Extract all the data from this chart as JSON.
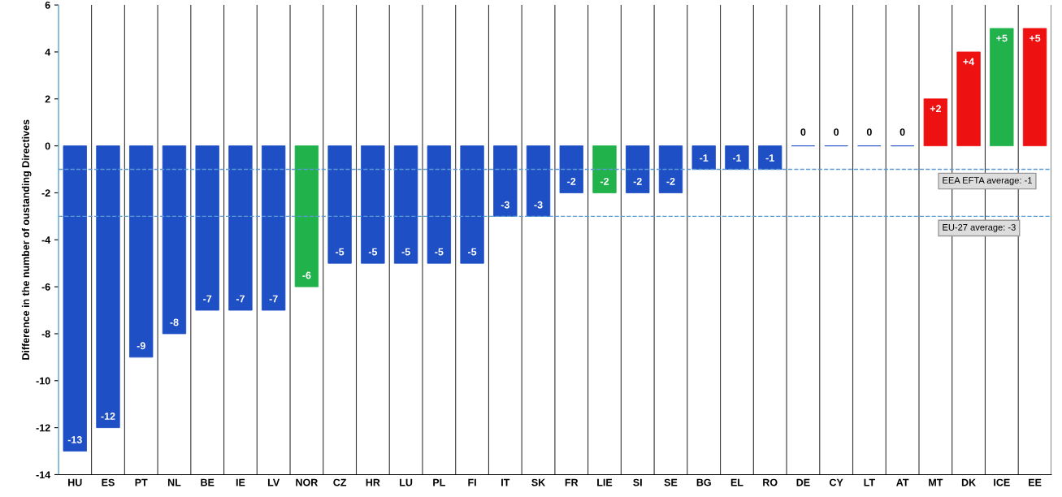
{
  "chart_data": {
    "type": "bar",
    "ylabel": "Difference in the number of oustanding Directives",
    "categories": [
      "HU",
      "ES",
      "PT",
      "NL",
      "BE",
      "IE",
      "LV",
      "NOR",
      "CZ",
      "HR",
      "LU",
      "PL",
      "FI",
      "IT",
      "SK",
      "FR",
      "LIE",
      "SI",
      "SE",
      "BG",
      "EL",
      "RO",
      "DE",
      "CY",
      "LT",
      "AT",
      "MT",
      "DK",
      "ICE",
      "EE"
    ],
    "values": [
      -13,
      -12,
      -9,
      -8,
      -7,
      -7,
      -7,
      -6,
      -5,
      -5,
      -5,
      -5,
      -5,
      -3,
      -3,
      -2,
      -2,
      -2,
      -2,
      -1,
      -1,
      -1,
      0,
      0,
      0,
      0,
      2,
      4,
      5,
      5
    ],
    "value_labels": [
      "-13",
      "-12",
      "-9",
      "-8",
      "-7",
      "-7",
      "-7",
      "-6",
      "-5",
      "-5",
      "-5",
      "-5",
      "-5",
      "-3",
      "-3",
      "-2",
      "-2",
      "-2",
      "-2",
      "-1",
      "-1",
      "-1",
      "0",
      "0",
      "0",
      "0",
      "+2",
      "+4",
      "+5",
      "+5"
    ],
    "colors": [
      "#1f4fc4",
      "#1f4fc4",
      "#1f4fc4",
      "#1f4fc4",
      "#1f4fc4",
      "#1f4fc4",
      "#1f4fc4",
      "#22b24c",
      "#1f4fc4",
      "#1f4fc4",
      "#1f4fc4",
      "#1f4fc4",
      "#1f4fc4",
      "#1f4fc4",
      "#1f4fc4",
      "#1f4fc4",
      "#22b24c",
      "#1f4fc4",
      "#1f4fc4",
      "#1f4fc4",
      "#1f4fc4",
      "#1f4fc4",
      "#1f4fc4",
      "#1f4fc4",
      "#1f4fc4",
      "#1f4fc4",
      "#ee1111",
      "#ee1111",
      "#22b24c",
      "#ee1111"
    ],
    "ylim": [
      -14,
      6
    ],
    "yticks": [
      -14,
      -12,
      -10,
      -8,
      -6,
      -4,
      -2,
      0,
      2,
      4,
      6
    ],
    "grid": "x",
    "ref_lines": [
      {
        "axis": "y",
        "value": -1,
        "label": "EEA EFTA average: -1",
        "color": "#5b9bd5",
        "line_style": "dashed"
      },
      {
        "axis": "y",
        "value": -3,
        "label": "EU-27 average: -3",
        "color": "#5b9bd5",
        "line_style": "dashed"
      }
    ]
  }
}
